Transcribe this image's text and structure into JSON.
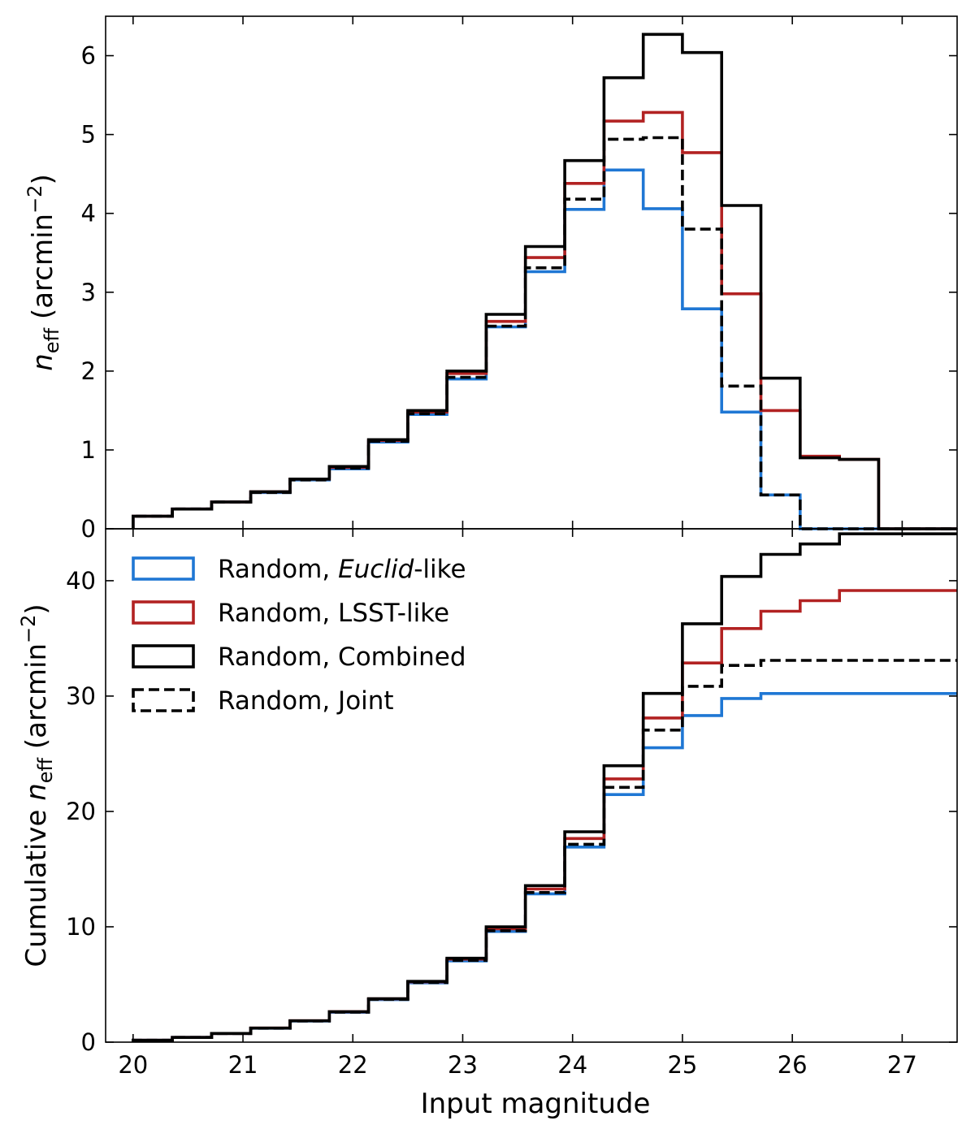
{
  "chart_data": [
    {
      "type": "step",
      "panel": "top",
      "ylabel_prefix": "n",
      "ylabel_sub": "eff",
      "ylabel_unit_open": " (arcmin",
      "ylabel_exp": "−2",
      "ylabel_unit_close": ")",
      "xlim": [
        19.75,
        27.5
      ],
      "ylim": [
        0,
        6.5
      ],
      "yticks": [
        "0",
        "1",
        "2",
        "3",
        "4",
        "5",
        "6"
      ],
      "bin_edges": [
        20.0,
        20.357,
        20.714,
        21.071,
        21.429,
        21.786,
        22.143,
        22.5,
        22.857,
        23.214,
        23.571,
        23.929,
        24.286,
        24.643,
        25.0,
        25.357,
        25.714,
        26.071,
        26.429,
        26.786,
        27.143,
        27.5
      ],
      "series": [
        {
          "name": "Random, Euclid-like",
          "color": "#1f77d4",
          "style": "solid",
          "values": [
            0.16,
            0.25,
            0.34,
            0.46,
            0.62,
            0.76,
            1.1,
            1.45,
            1.9,
            2.56,
            3.26,
            4.05,
            4.55,
            4.06,
            2.79,
            1.48,
            0.43,
            0.0,
            0.0,
            0.0,
            0.0
          ]
        },
        {
          "name": "Random, LSST-like",
          "color": "#b22222",
          "style": "solid",
          "values": [
            0.16,
            0.25,
            0.34,
            0.47,
            0.63,
            0.78,
            1.12,
            1.48,
            1.97,
            2.63,
            3.44,
            4.38,
            5.17,
            5.28,
            4.77,
            2.98,
            1.5,
            0.92,
            0.88,
            0.0,
            0.0
          ]
        },
        {
          "name": "Random, Combined",
          "color": "#000000",
          "style": "solid",
          "values": [
            0.16,
            0.25,
            0.34,
            0.47,
            0.63,
            0.79,
            1.13,
            1.5,
            2.0,
            2.72,
            3.58,
            4.67,
            5.72,
            6.27,
            6.04,
            4.1,
            1.91,
            0.9,
            0.88,
            0.0,
            0.0
          ]
        },
        {
          "name": "Random, Joint",
          "color": "#000000",
          "style": "dashed",
          "values": [
            0.16,
            0.25,
            0.34,
            0.46,
            0.62,
            0.77,
            1.11,
            1.46,
            1.92,
            2.57,
            3.31,
            4.18,
            4.94,
            4.96,
            3.8,
            1.81,
            0.43,
            0.0,
            0.0,
            0.0,
            0.0
          ]
        }
      ]
    },
    {
      "type": "step",
      "panel": "bottom",
      "ylabel_prefix": "Cumulative n",
      "ylabel_sub": "eff",
      "ylabel_unit_open": " (arcmin",
      "ylabel_exp": "−2",
      "ylabel_unit_close": ")",
      "xlabel": "Input magnitude",
      "xlim": [
        19.75,
        27.5
      ],
      "ylim": [
        0,
        44.5
      ],
      "xticks": [
        "20",
        "21",
        "22",
        "23",
        "24",
        "25",
        "26",
        "27"
      ],
      "yticks": [
        "0",
        "10",
        "20",
        "30",
        "40"
      ],
      "bin_edges": [
        20.0,
        20.357,
        20.714,
        21.071,
        21.429,
        21.786,
        22.143,
        22.5,
        22.857,
        23.214,
        23.571,
        23.929,
        24.286,
        24.643,
        25.0,
        25.357,
        25.714,
        26.071,
        26.429,
        26.786,
        27.143,
        27.5
      ],
      "series": [
        {
          "name": "Random, Euclid-like",
          "color": "#1f77d4",
          "style": "solid",
          "values": [
            0.16,
            0.41,
            0.75,
            1.21,
            1.83,
            2.59,
            3.69,
            5.14,
            7.04,
            9.6,
            12.86,
            16.91,
            21.46,
            25.52,
            28.31,
            29.79,
            30.22,
            30.22,
            30.22,
            30.22,
            30.22
          ]
        },
        {
          "name": "Random, LSST-like",
          "color": "#b22222",
          "style": "solid",
          "values": [
            0.16,
            0.41,
            0.75,
            1.22,
            1.85,
            2.63,
            3.75,
            5.23,
            7.2,
            9.83,
            13.27,
            17.65,
            22.82,
            28.1,
            32.87,
            35.85,
            37.35,
            38.27,
            39.15,
            39.15,
            39.15
          ]
        },
        {
          "name": "Random, Combined",
          "color": "#000000",
          "style": "solid",
          "values": [
            0.16,
            0.41,
            0.75,
            1.22,
            1.85,
            2.64,
            3.77,
            5.27,
            7.27,
            9.99,
            13.57,
            18.24,
            23.96,
            30.23,
            36.27,
            40.37,
            42.28,
            43.18,
            44.06,
            44.06,
            44.06
          ]
        },
        {
          "name": "Random, Joint",
          "color": "#000000",
          "style": "dashed",
          "values": [
            0.16,
            0.41,
            0.75,
            1.21,
            1.83,
            2.6,
            3.71,
            5.17,
            7.09,
            9.66,
            12.97,
            17.15,
            22.09,
            27.05,
            30.85,
            32.66,
            33.09,
            33.09,
            33.09,
            33.09,
            33.09
          ]
        }
      ]
    }
  ],
  "legend": {
    "items": [
      {
        "prefix": "Random, ",
        "italic": "Euclid",
        "suffix": "-like",
        "color": "#1f77d4",
        "style": "solid"
      },
      {
        "prefix": "Random, LSST-like",
        "italic": "",
        "suffix": "",
        "color": "#b22222",
        "style": "solid"
      },
      {
        "prefix": "Random, Combined",
        "italic": "",
        "suffix": "",
        "color": "#000000",
        "style": "solid"
      },
      {
        "prefix": "Random, Joint",
        "italic": "",
        "suffix": "",
        "color": "#000000",
        "style": "dashed"
      }
    ]
  }
}
